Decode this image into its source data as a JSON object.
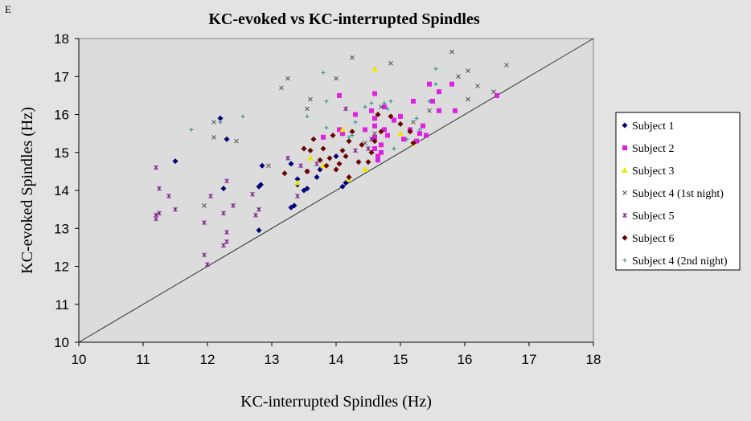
{
  "panel_label": "E",
  "chart_data": {
    "type": "scatter",
    "title": "KC-evoked vs KC-interrupted Spindles",
    "xlabel": "KC-interrupted Spindles (Hz)",
    "ylabel": "KC-evoked Spindles (Hz)",
    "xlim": [
      10,
      18
    ],
    "ylim": [
      10,
      18
    ],
    "xticks": [
      10,
      11,
      12,
      13,
      14,
      15,
      16,
      17,
      18
    ],
    "yticks": [
      10,
      11,
      12,
      13,
      14,
      15,
      16,
      17,
      18
    ],
    "grid": false,
    "legend_position": "right",
    "reference_line": {
      "from": [
        10,
        10
      ],
      "to": [
        18,
        18
      ],
      "color": "#333333"
    },
    "series": [
      {
        "name": "Subject 1",
        "marker": "diamond",
        "color": "#00007a",
        "points": [
          [
            11.5,
            14.77
          ],
          [
            12.2,
            15.9
          ],
          [
            12.3,
            15.35
          ],
          [
            12.25,
            14.05
          ],
          [
            12.8,
            12.95
          ],
          [
            12.8,
            14.1
          ],
          [
            12.83,
            14.15
          ],
          [
            12.85,
            14.65
          ],
          [
            13.3,
            14.7
          ],
          [
            13.3,
            13.55
          ],
          [
            13.35,
            13.6
          ],
          [
            13.4,
            14.3
          ],
          [
            13.5,
            14.0
          ],
          [
            13.55,
            14.05
          ],
          [
            13.4,
            14.15
          ],
          [
            13.7,
            14.35
          ],
          [
            13.75,
            14.55
          ],
          [
            14.1,
            14.1
          ],
          [
            14.15,
            14.2
          ],
          [
            14.0,
            14.9
          ],
          [
            14.1,
            15.5
          ]
        ]
      },
      {
        "name": "Subject 2",
        "marker": "square",
        "color": "#e020e0",
        "points": [
          [
            13.8,
            15.4
          ],
          [
            14.05,
            16.5
          ],
          [
            14.05,
            15.6
          ],
          [
            14.1,
            15.5
          ],
          [
            14.3,
            16.0
          ],
          [
            14.45,
            15.6
          ],
          [
            14.55,
            16.1
          ],
          [
            14.6,
            16.55
          ],
          [
            14.6,
            15.9
          ],
          [
            14.6,
            15.7
          ],
          [
            14.6,
            15.4
          ],
          [
            14.6,
            15.1
          ],
          [
            14.65,
            14.8
          ],
          [
            14.65,
            14.9
          ],
          [
            14.7,
            15.0
          ],
          [
            14.7,
            15.2
          ],
          [
            14.75,
            15.6
          ],
          [
            14.75,
            16.2
          ],
          [
            14.8,
            15.45
          ],
          [
            14.9,
            15.85
          ],
          [
            15.0,
            15.95
          ],
          [
            15.05,
            15.35
          ],
          [
            15.15,
            15.6
          ],
          [
            15.2,
            16.35
          ],
          [
            15.25,
            15.3
          ],
          [
            15.3,
            15.5
          ],
          [
            15.35,
            15.7
          ],
          [
            15.4,
            15.45
          ],
          [
            15.45,
            16.8
          ],
          [
            15.5,
            16.35
          ],
          [
            15.6,
            16.6
          ],
          [
            15.6,
            16.1
          ],
          [
            15.8,
            16.8
          ],
          [
            15.85,
            16.1
          ],
          [
            16.5,
            16.5
          ]
        ]
      },
      {
        "name": "Subject 3",
        "marker": "triangle",
        "color": "#e8e800",
        "points": [
          [
            13.4,
            14.2
          ],
          [
            13.6,
            14.85
          ],
          [
            13.8,
            14.65
          ],
          [
            14.1,
            15.6
          ],
          [
            14.2,
            14.3
          ],
          [
            14.45,
            14.55
          ],
          [
            14.6,
            17.2
          ],
          [
            15.0,
            15.5
          ],
          [
            15.2,
            15.25
          ]
        ]
      },
      {
        "name": "Subject 4 (1st night)",
        "marker": "x",
        "color": "#505050",
        "points": [
          [
            11.95,
            13.6
          ],
          [
            12.1,
            15.4
          ],
          [
            12.1,
            15.8
          ],
          [
            12.45,
            15.3
          ],
          [
            12.95,
            14.65
          ],
          [
            13.15,
            16.7
          ],
          [
            13.25,
            16.95
          ],
          [
            13.55,
            16.15
          ],
          [
            13.6,
            16.4
          ],
          [
            14.0,
            16.95
          ],
          [
            14.25,
            17.5
          ],
          [
            14.45,
            15.25
          ],
          [
            14.7,
            16.2
          ],
          [
            14.85,
            17.35
          ],
          [
            15.2,
            15.8
          ],
          [
            15.45,
            16.1
          ],
          [
            15.8,
            17.65
          ],
          [
            15.9,
            17.0
          ],
          [
            16.05,
            16.4
          ],
          [
            16.05,
            17.15
          ],
          [
            16.2,
            16.75
          ],
          [
            16.45,
            16.6
          ],
          [
            16.65,
            17.3
          ],
          [
            14.6,
            15.5
          ]
        ]
      },
      {
        "name": "Subject 5",
        "marker": "star",
        "color": "#7a1a8a",
        "points": [
          [
            11.2,
            14.6
          ],
          [
            11.2,
            13.35
          ],
          [
            11.2,
            13.25
          ],
          [
            11.25,
            14.05
          ],
          [
            11.25,
            13.4
          ],
          [
            11.4,
            13.85
          ],
          [
            11.5,
            13.5
          ],
          [
            11.95,
            13.15
          ],
          [
            11.95,
            12.3
          ],
          [
            12.0,
            12.05
          ],
          [
            12.05,
            13.85
          ],
          [
            12.25,
            13.4
          ],
          [
            12.25,
            12.55
          ],
          [
            12.3,
            12.65
          ],
          [
            12.3,
            12.9
          ],
          [
            12.3,
            14.25
          ],
          [
            12.4,
            13.6
          ],
          [
            12.7,
            13.9
          ],
          [
            12.75,
            13.35
          ],
          [
            12.8,
            13.5
          ],
          [
            13.25,
            14.85
          ],
          [
            13.4,
            13.85
          ],
          [
            13.45,
            14.65
          ],
          [
            13.55,
            14.5
          ],
          [
            13.7,
            14.7
          ],
          [
            14.15,
            16.15
          ],
          [
            14.3,
            15.05
          ],
          [
            14.5,
            15.1
          ],
          [
            14.55,
            15.35
          ]
        ]
      },
      {
        "name": "Subject 6",
        "marker": "diamond",
        "color": "#6a0000",
        "points": [
          [
            13.2,
            14.45
          ],
          [
            13.5,
            15.1
          ],
          [
            13.55,
            14.5
          ],
          [
            13.6,
            15.05
          ],
          [
            13.65,
            15.35
          ],
          [
            13.75,
            14.8
          ],
          [
            13.8,
            15.1
          ],
          [
            13.85,
            14.65
          ],
          [
            13.9,
            14.85
          ],
          [
            13.95,
            15.45
          ],
          [
            14.0,
            14.55
          ],
          [
            14.05,
            14.7
          ],
          [
            14.1,
            15.05
          ],
          [
            14.15,
            14.9
          ],
          [
            14.2,
            14.35
          ],
          [
            14.2,
            15.3
          ],
          [
            14.25,
            15.55
          ],
          [
            14.35,
            14.75
          ],
          [
            14.4,
            15.2
          ],
          [
            14.5,
            14.75
          ],
          [
            14.55,
            15.0
          ],
          [
            14.6,
            15.3
          ],
          [
            14.65,
            16.0
          ],
          [
            14.7,
            15.55
          ],
          [
            14.85,
            15.95
          ],
          [
            15.0,
            15.75
          ],
          [
            15.15,
            15.55
          ],
          [
            15.2,
            15.25
          ]
        ]
      },
      {
        "name": "Subject 4 (2nd night)",
        "marker": "plus",
        "color": "#2a8a8a",
        "points": [
          [
            11.75,
            15.6
          ],
          [
            12.2,
            15.8
          ],
          [
            12.55,
            15.95
          ],
          [
            13.55,
            15.95
          ],
          [
            13.8,
            17.1
          ],
          [
            13.85,
            16.35
          ],
          [
            13.85,
            15.65
          ],
          [
            14.2,
            15.4
          ],
          [
            14.3,
            15.8
          ],
          [
            14.45,
            16.2
          ],
          [
            14.55,
            16.3
          ],
          [
            14.75,
            16.3
          ],
          [
            14.8,
            16.15
          ],
          [
            14.85,
            16.35
          ],
          [
            14.9,
            15.1
          ],
          [
            15.1,
            15.35
          ],
          [
            15.25,
            15.9
          ],
          [
            15.3,
            15.6
          ],
          [
            15.45,
            16.35
          ],
          [
            15.55,
            16.8
          ],
          [
            15.55,
            17.2
          ],
          [
            14.25,
            15.45
          ]
        ]
      }
    ]
  }
}
